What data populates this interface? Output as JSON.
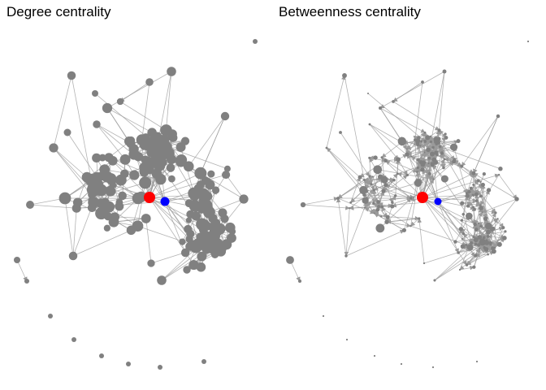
{
  "panels": [
    {
      "title": "Degree centrality"
    },
    {
      "title": "Betweenness centrality"
    }
  ],
  "colors": {
    "node": "#808080",
    "edge": "#9a9a9a",
    "highlight_primary": "#ff0000",
    "highlight_secondary": "#0000ff",
    "background": "#ffffff"
  }
}
